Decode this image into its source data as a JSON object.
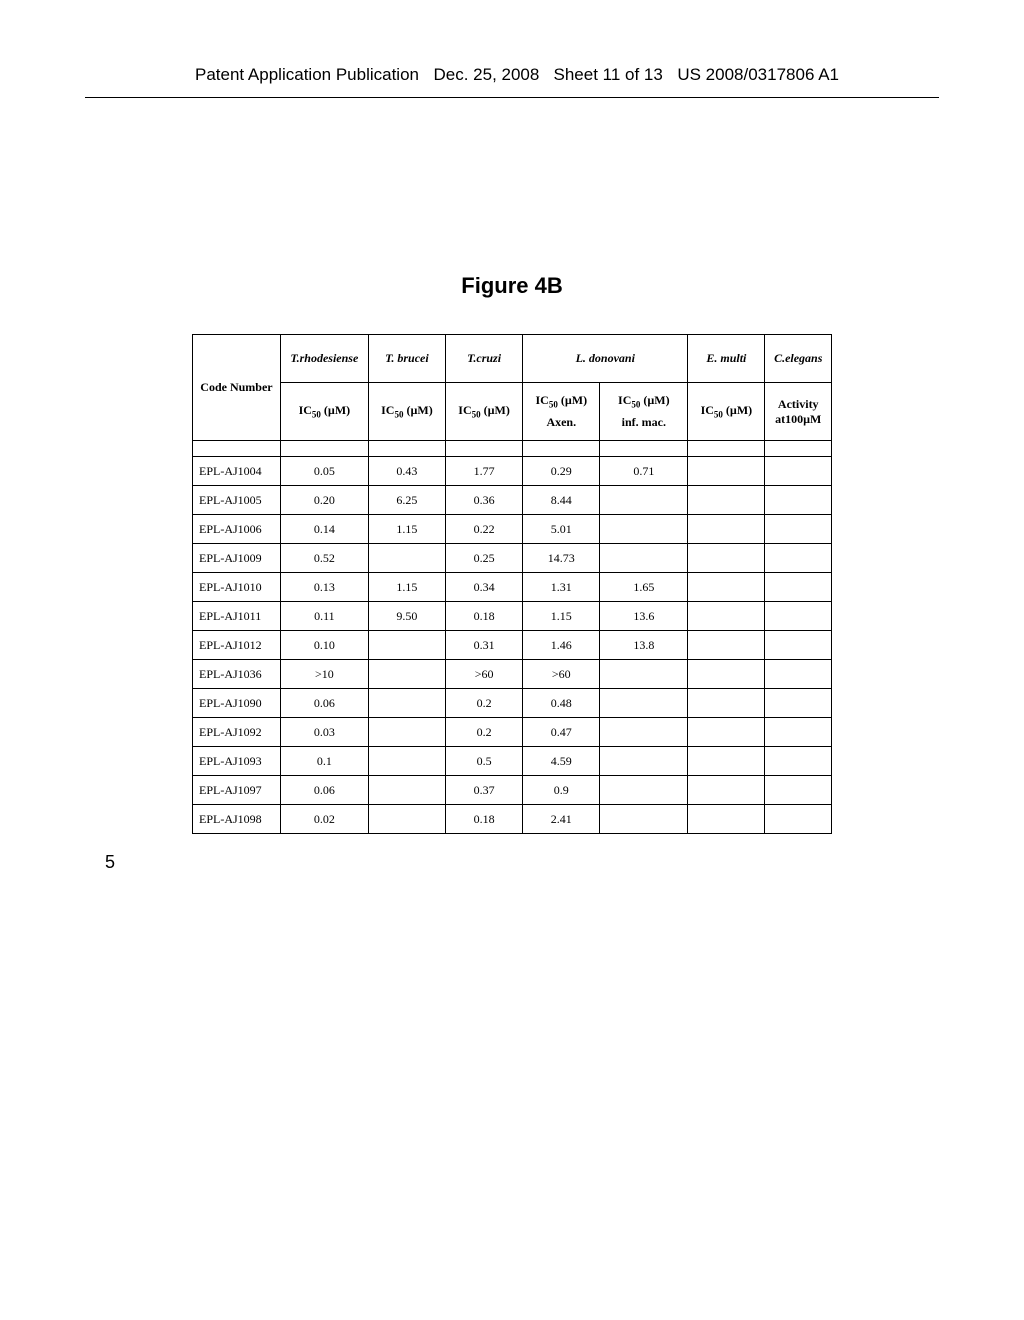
{
  "header": {
    "left": "Patent Application Publication",
    "date": "Dec. 25, 2008",
    "sheet": "Sheet 11 of 13",
    "right": "US 2008/0317806 A1"
  },
  "figure_title": "Figure 4B",
  "table": {
    "columns": {
      "code": "Code Number",
      "rhod": "T.rhodesiense",
      "bruc": "T. brucei",
      "cruz": "T.cruzi",
      "don": "L. donovani",
      "mult": "E. multi",
      "eleg": "C.elegans"
    },
    "subheaders": {
      "ic50_prefix": "IC",
      "ic50_sub": "50",
      "ic50_suffix": " (µM)",
      "axen": "Axen.",
      "infmac": "inf. mac.",
      "activity_line1": "Activity",
      "activity_line2": "at100µM"
    },
    "rows": [
      {
        "code": "EPL-AJ1004",
        "rhod": "0.05",
        "bruc": "0.43",
        "cruz": "1.77",
        "don1": "0.29",
        "don2": "0.71",
        "mult": "",
        "eleg": ""
      },
      {
        "code": "EPL-AJ1005",
        "rhod": "0.20",
        "bruc": "6.25",
        "cruz": "0.36",
        "don1": "8.44",
        "don2": "",
        "mult": "",
        "eleg": ""
      },
      {
        "code": "EPL-AJ1006",
        "rhod": "0.14",
        "bruc": "1.15",
        "cruz": "0.22",
        "don1": "5.01",
        "don2": "",
        "mult": "",
        "eleg": ""
      },
      {
        "code": "EPL-AJ1009",
        "rhod": "0.52",
        "bruc": "",
        "cruz": "0.25",
        "don1": "14.73",
        "don2": "",
        "mult": "",
        "eleg": ""
      },
      {
        "code": "EPL-AJ1010",
        "rhod": "0.13",
        "bruc": "1.15",
        "cruz": "0.34",
        "don1": "1.31",
        "don2": "1.65",
        "mult": "",
        "eleg": ""
      },
      {
        "code": "EPL-AJ1011",
        "rhod": "0.11",
        "bruc": "9.50",
        "cruz": "0.18",
        "don1": "1.15",
        "don2": "13.6",
        "mult": "",
        "eleg": ""
      },
      {
        "code": "EPL-AJ1012",
        "rhod": "0.10",
        "bruc": "",
        "cruz": "0.31",
        "don1": "1.46",
        "don2": "13.8",
        "mult": "",
        "eleg": ""
      },
      {
        "code": "EPL-AJ1036",
        "rhod": ">10",
        "bruc": "",
        "cruz": ">60",
        "don1": ">60",
        "don2": "",
        "mult": "",
        "eleg": ""
      },
      {
        "code": "EPL-AJ1090",
        "rhod": "0.06",
        "bruc": "",
        "cruz": "0.2",
        "don1": "0.48",
        "don2": "",
        "mult": "",
        "eleg": ""
      },
      {
        "code": "EPL-AJ1092",
        "rhod": "0.03",
        "bruc": "",
        "cruz": "0.2",
        "don1": "0.47",
        "don2": "",
        "mult": "",
        "eleg": ""
      },
      {
        "code": "EPL-AJ1093",
        "rhod": "0.1",
        "bruc": "",
        "cruz": "0.5",
        "don1": "4.59",
        "don2": "",
        "mult": "",
        "eleg": ""
      },
      {
        "code": "EPL-AJ1097",
        "rhod": "0.06",
        "bruc": "",
        "cruz": "0.37",
        "don1": "0.9",
        "don2": "",
        "mult": "",
        "eleg": ""
      },
      {
        "code": "EPL-AJ1098",
        "rhod": "0.02",
        "bruc": "",
        "cruz": "0.18",
        "don1": "2.41",
        "don2": "",
        "mult": "",
        "eleg": ""
      }
    ]
  },
  "footer_5": "5"
}
